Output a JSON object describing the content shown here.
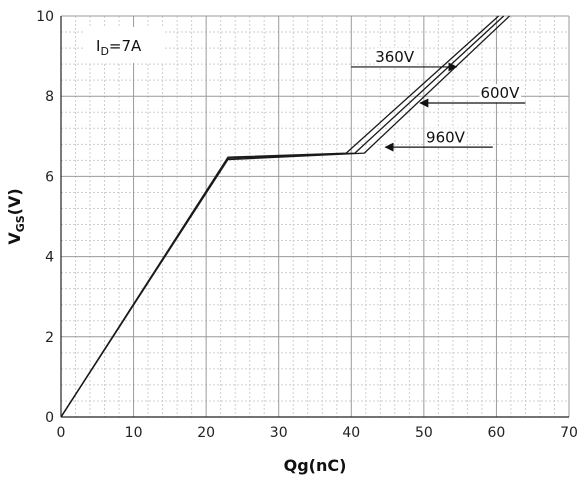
{
  "chart_data": {
    "type": "line",
    "title": "",
    "xlabel": "Qg(nC)",
    "ylabel": "V GS(V)",
    "ylabel_main": "V",
    "ylabel_sub": "GS",
    "ylabel_unit": "(V)",
    "xlim": [
      0,
      70
    ],
    "ylim": [
      0,
      10
    ],
    "x_ticks": [
      0,
      10,
      20,
      30,
      40,
      50,
      60,
      70
    ],
    "y_ticks": [
      0,
      2,
      4,
      6,
      8,
      10
    ],
    "minor_x_step": 2,
    "minor_y_step": 0.4,
    "grid": true,
    "condition": {
      "main": "I",
      "sub": "D",
      "rest": "=7A"
    },
    "series": [
      {
        "name": "360V",
        "points": [
          [
            0,
            0
          ],
          [
            23,
            6.48
          ],
          [
            39.3,
            6.58
          ],
          [
            60.3,
            10.0
          ]
        ]
      },
      {
        "name": "600V",
        "points": [
          [
            0,
            0
          ],
          [
            23,
            6.45
          ],
          [
            40.5,
            6.58
          ],
          [
            61.0,
            10.0
          ]
        ]
      },
      {
        "name": "960V",
        "points": [
          [
            0,
            0
          ],
          [
            23,
            6.42
          ],
          [
            41.8,
            6.58
          ],
          [
            61.8,
            10.0
          ]
        ]
      }
    ],
    "annotations": [
      {
        "label": "360V",
        "label_x": 43.3,
        "label_y": 8.85,
        "arrow_from": [
          40.0,
          8.73
        ],
        "arrow_to": [
          54.5,
          8.73
        ]
      },
      {
        "label": "600V",
        "label_x": 57.8,
        "label_y": 7.95,
        "arrow_from": [
          64.0,
          7.83
        ],
        "arrow_to": [
          49.5,
          7.83
        ]
      },
      {
        "label": "960V",
        "label_x": 50.3,
        "label_y": 6.85,
        "arrow_from": [
          59.5,
          6.73
        ],
        "arrow_to": [
          44.7,
          6.73
        ]
      }
    ],
    "colors": {
      "line": "#1a1a1a",
      "major_grid": "#9a9a9a",
      "minor_grid": "#cfcfcf",
      "axis": "#222222"
    }
  }
}
